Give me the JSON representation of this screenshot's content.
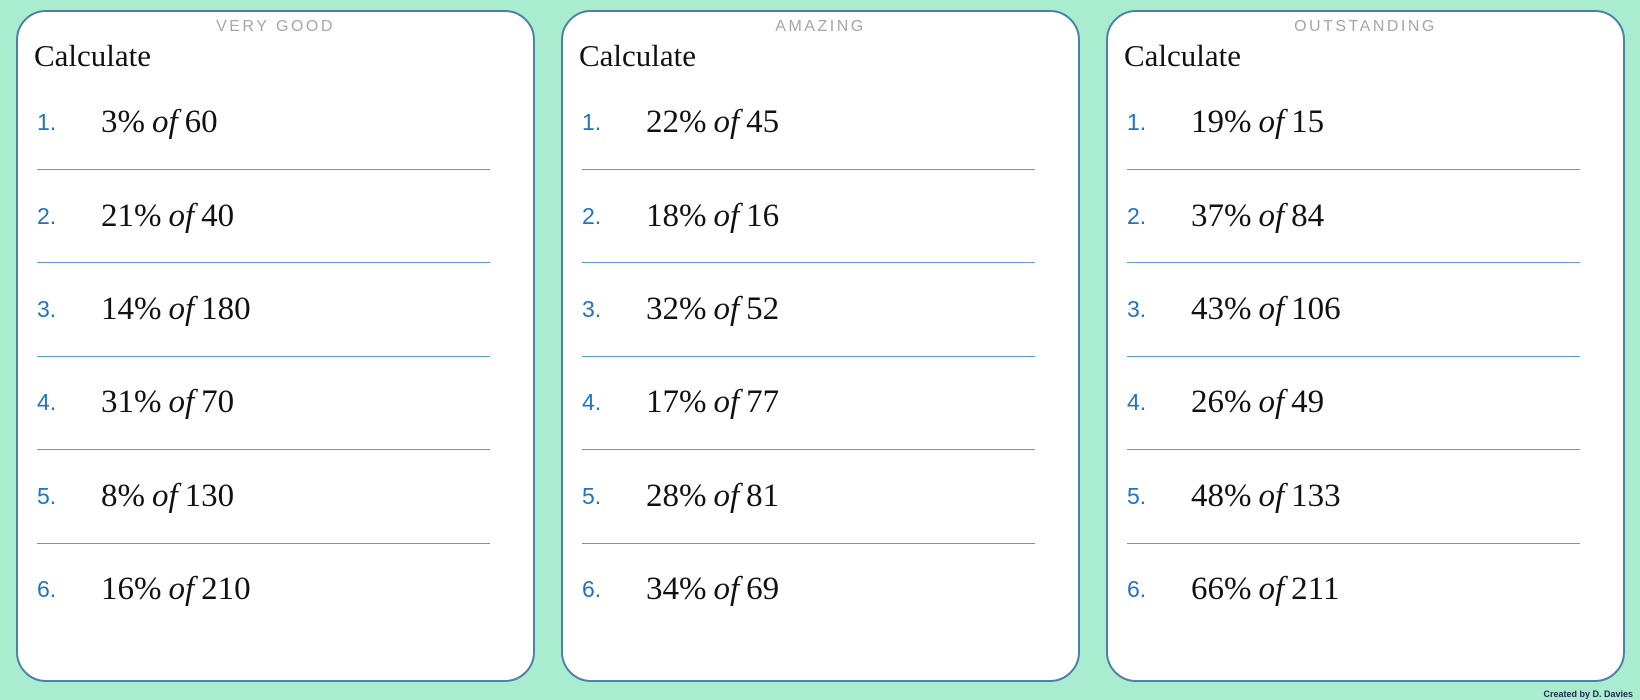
{
  "colors": {
    "background": "#aaecd0",
    "card_border": "#4d80a8",
    "divider": "#5b9bd5",
    "number": "#2173c4",
    "header_label": "#a6a6a6",
    "text": "#111111"
  },
  "cards": [
    {
      "header": "VERY GOOD",
      "instruction": "Calculate",
      "problems": [
        {
          "number": "1.",
          "percent": "3%",
          "connector": "of",
          "amount": "60"
        },
        {
          "number": "2.",
          "percent": "21%",
          "connector": "of",
          "amount": "40"
        },
        {
          "number": "3.",
          "percent": "14%",
          "connector": "of",
          "amount": "180"
        },
        {
          "number": "4.",
          "percent": "31%",
          "connector": "of",
          "amount": "70"
        },
        {
          "number": "5.",
          "percent": "8%",
          "connector": "of",
          "amount": "130"
        },
        {
          "number": "6.",
          "percent": "16%",
          "connector": "of",
          "amount": "210"
        }
      ]
    },
    {
      "header": "AMAZING",
      "instruction": "Calculate",
      "problems": [
        {
          "number": "1.",
          "percent": "22%",
          "connector": "of",
          "amount": "45"
        },
        {
          "number": "2.",
          "percent": "18%",
          "connector": "of",
          "amount": "16"
        },
        {
          "number": "3.",
          "percent": "32%",
          "connector": "of",
          "amount": "52"
        },
        {
          "number": "4.",
          "percent": "17%",
          "connector": "of",
          "amount": "77"
        },
        {
          "number": "5.",
          "percent": "28%",
          "connector": "of",
          "amount": "81"
        },
        {
          "number": "6.",
          "percent": "34%",
          "connector": "of",
          "amount": "69"
        }
      ]
    },
    {
      "header": "OUTSTANDING",
      "instruction": "Calculate",
      "problems": [
        {
          "number": "1.",
          "percent": "19%",
          "connector": "of",
          "amount": "15"
        },
        {
          "number": "2.",
          "percent": "37%",
          "connector": "of",
          "amount": "84"
        },
        {
          "number": "3.",
          "percent": "43%",
          "connector": "of",
          "amount": "106"
        },
        {
          "number": "4.",
          "percent": "26%",
          "connector": "of",
          "amount": "49"
        },
        {
          "number": "5.",
          "percent": "48%",
          "connector": "of",
          "amount": "133"
        },
        {
          "number": "6.",
          "percent": "66%",
          "connector": "of",
          "amount": "211"
        }
      ]
    }
  ],
  "credit": "Created by D. Davies"
}
